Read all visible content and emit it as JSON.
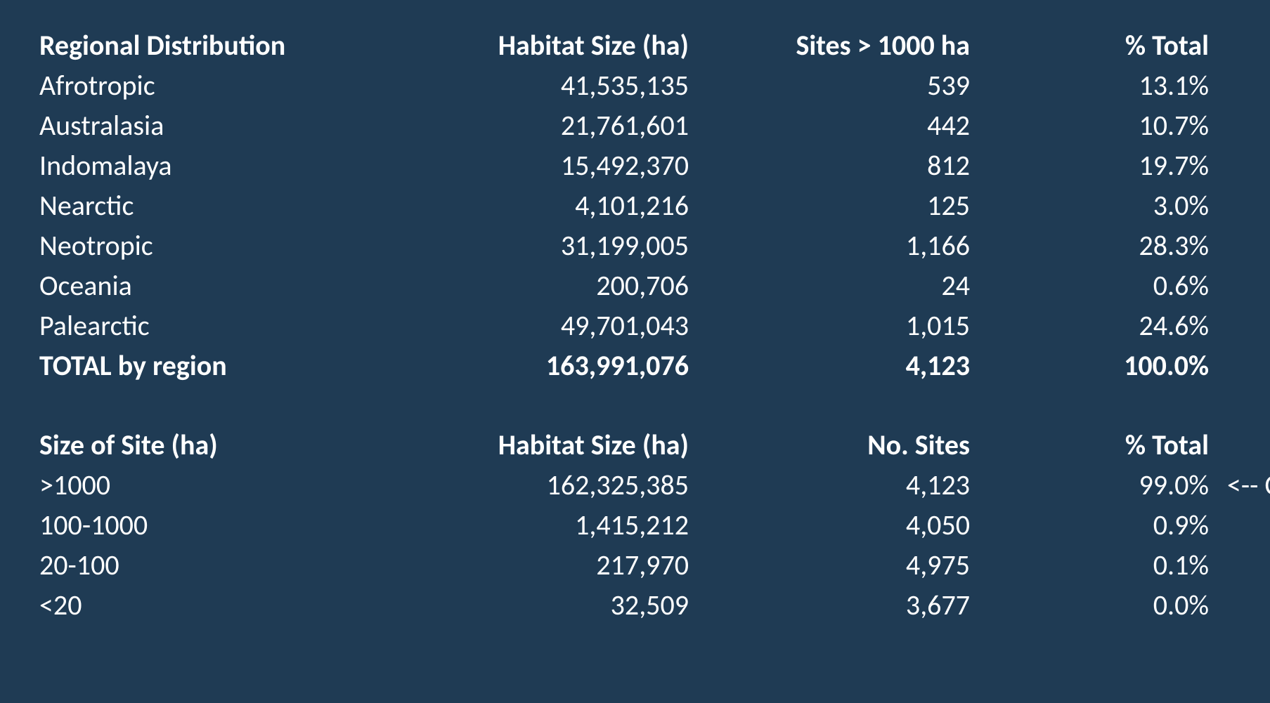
{
  "background_color": "#1f3b54",
  "text_color": "#ffffff",
  "font_family": "Calibri",
  "font_size_pt": 30,
  "table1": {
    "headers": {
      "col1": "Regional Distribution",
      "col2": "Habitat Size (ha)",
      "col3": "Sites > 1000 ha",
      "col4": "% Total"
    },
    "column_align": [
      "left",
      "right",
      "right",
      "right"
    ],
    "rows": [
      {
        "region": "Afrotropic",
        "habitat": "41,535,135",
        "sites": "539",
        "pct": "13.1%"
      },
      {
        "region": "Australasia",
        "habitat": "21,761,601",
        "sites": "442",
        "pct": "10.7%"
      },
      {
        "region": "Indomalaya",
        "habitat": "15,492,370",
        "sites": "812",
        "pct": "19.7%"
      },
      {
        "region": "Nearctic",
        "habitat": "4,101,216",
        "sites": "125",
        "pct": "3.0%"
      },
      {
        "region": "Neotropic",
        "habitat": "31,199,005",
        "sites": "1,166",
        "pct": "28.3%"
      },
      {
        "region": "Oceania",
        "habitat": "200,706",
        "sites": "24",
        "pct": "0.6%"
      },
      {
        "region": "Palearctic",
        "habitat": "49,701,043",
        "sites": "1,015",
        "pct": "24.6%"
      }
    ],
    "total": {
      "label": "TOTAL by region",
      "habitat": "163,991,076",
      "sites": "4,123",
      "pct": "100.0%"
    }
  },
  "table2": {
    "headers": {
      "col1": "Size of Site (ha)",
      "col2": "Habitat Size (ha)",
      "col3": "No. Sites",
      "col4": "% Total"
    },
    "column_align": [
      "left",
      "right",
      "right",
      "right"
    ],
    "rows": [
      {
        "size": ">1000",
        "habitat": "162,325,385",
        "sites": "4,123",
        "pct": "99.0%",
        "annotation": "<-- CIAs"
      },
      {
        "size": "100-1000",
        "habitat": "1,415,212",
        "sites": "4,050",
        "pct": "0.9%",
        "annotation": ""
      },
      {
        "size": "20-100",
        "habitat": "217,970",
        "sites": "4,975",
        "pct": "0.1%",
        "annotation": ""
      },
      {
        "size": "<20",
        "habitat": "32,509",
        "sites": "3,677",
        "pct": "0.0%",
        "annotation": ""
      }
    ]
  }
}
